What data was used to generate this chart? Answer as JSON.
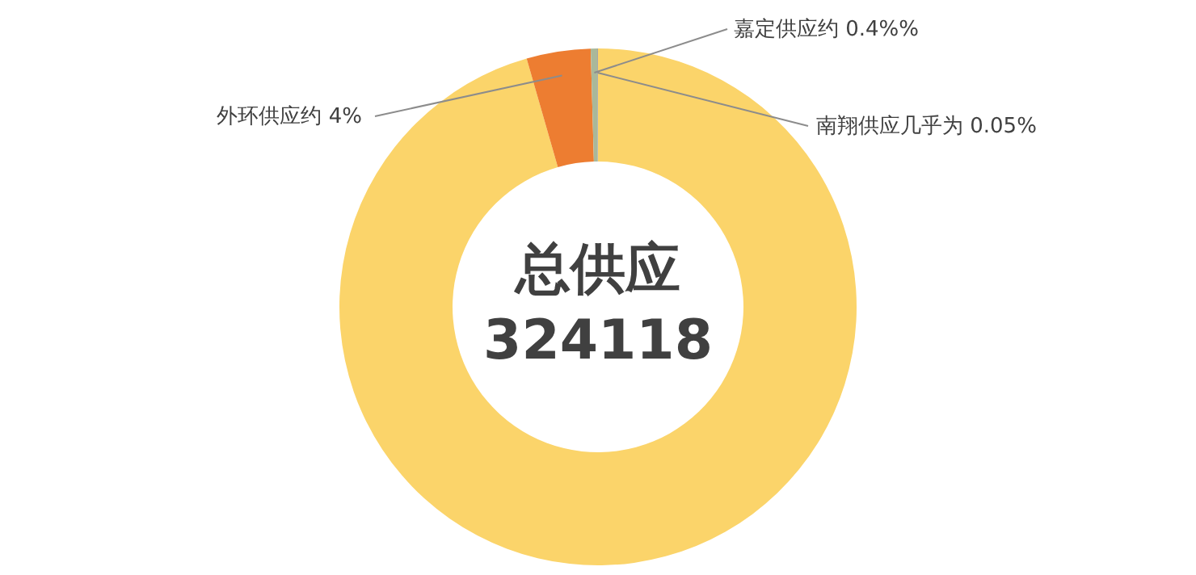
{
  "chart_data": {
    "type": "donut",
    "categories": [
      null,
      "外环供应约 4%",
      "嘉定供应约  0.4%%",
      "南翔供应几乎为 0.05%"
    ],
    "values": [
      95.55,
      4,
      0.4,
      0.05
    ],
    "colors": [
      "#fbd46a",
      "#ed7d31",
      "#a9b89a",
      "#a5a5a5"
    ],
    "annotations": [
      "总供应",
      "324118"
    ],
    "legend": false
  }
}
